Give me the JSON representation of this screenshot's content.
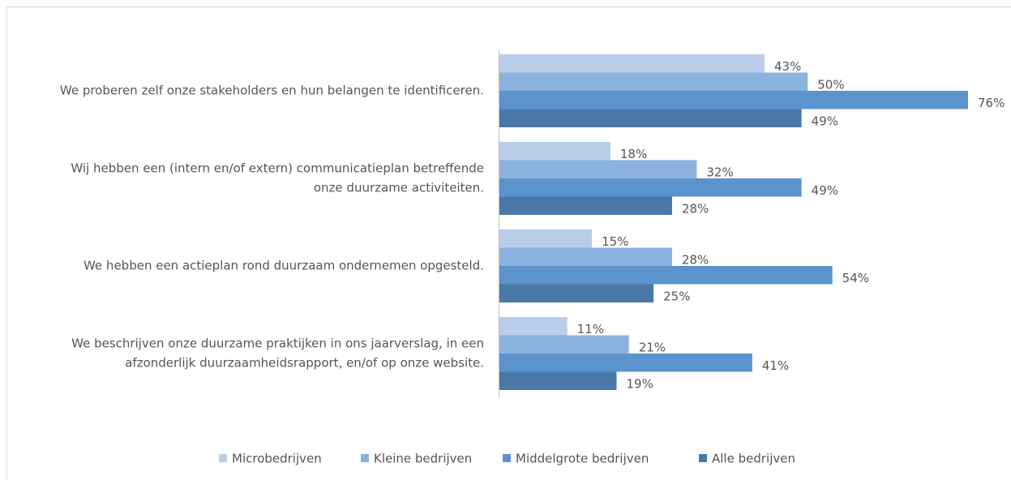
{
  "chart_data": {
    "type": "hbar",
    "categories": [
      [
        "We proberen zelf onze stakeholders en hun belangen te identificeren."
      ],
      [
        "Wij hebben een (intern en/of extern) communicatieplan betreffende",
        "onze duurzame activiteiten."
      ],
      [
        "We hebben een actieplan rond duurzaam ondernemen opgesteld."
      ],
      [
        "We beschrijven onze duurzame praktijken in ons jaarverslag, in een",
        "afzonderlijk duurzaamheidsrapport, en/of op onze website."
      ]
    ],
    "series": [
      {
        "name": "Microbedrijven",
        "color": "#b9cde9",
        "values": [
          43,
          18,
          15,
          11
        ],
        "value_labels": [
          "43%",
          "18%",
          "15%",
          "11%"
        ]
      },
      {
        "name": "Kleine bedrijven",
        "color": "#8bb1df",
        "values": [
          50,
          32,
          28,
          21
        ],
        "value_labels": [
          "50%",
          "32%",
          "28%",
          "21%"
        ]
      },
      {
        "name": "Middelgrote bedrijven",
        "color": "#5b94cc",
        "values": [
          76,
          49,
          54,
          41
        ],
        "value_labels": [
          "76%",
          "49%",
          "54%",
          "41%"
        ]
      },
      {
        "name": "Alle bedrijven",
        "color": "#4a79a8",
        "values": [
          49,
          28,
          25,
          19
        ],
        "value_labels": [
          "49%",
          "28%",
          "25%",
          "19%"
        ]
      }
    ],
    "legend": "bottom"
  }
}
